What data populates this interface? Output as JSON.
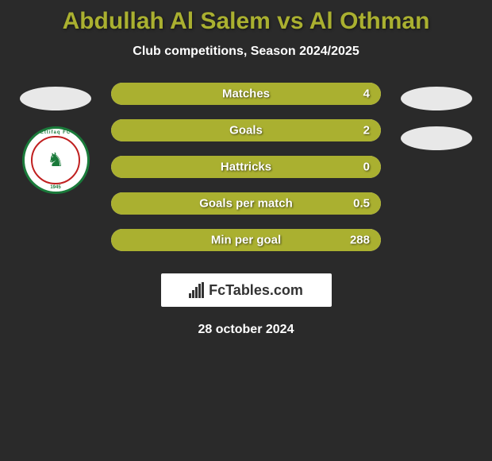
{
  "title": "Abdullah Al Salem vs Al Othman",
  "subtitle": "Club competitions, Season 2024/2025",
  "date": "28 october 2024",
  "footer_brand": "FcTables.com",
  "colors": {
    "accent": "#aab030",
    "bar_bg": "#d4d4d4",
    "background": "#2a2a2a",
    "text": "#ffffff"
  },
  "left_club": {
    "name": "Ettifaq FC",
    "year": "1945"
  },
  "stats": [
    {
      "label": "Matches",
      "value": "4",
      "fill_pct": 100,
      "fill_color": "#aab030"
    },
    {
      "label": "Goals",
      "value": "2",
      "fill_pct": 100,
      "fill_color": "#aab030"
    },
    {
      "label": "Hattricks",
      "value": "0",
      "fill_pct": 100,
      "fill_color": "#aab030"
    },
    {
      "label": "Goals per match",
      "value": "0.5",
      "fill_pct": 100,
      "fill_color": "#aab030"
    },
    {
      "label": "Min per goal",
      "value": "288",
      "fill_pct": 100,
      "fill_color": "#aab030"
    }
  ]
}
